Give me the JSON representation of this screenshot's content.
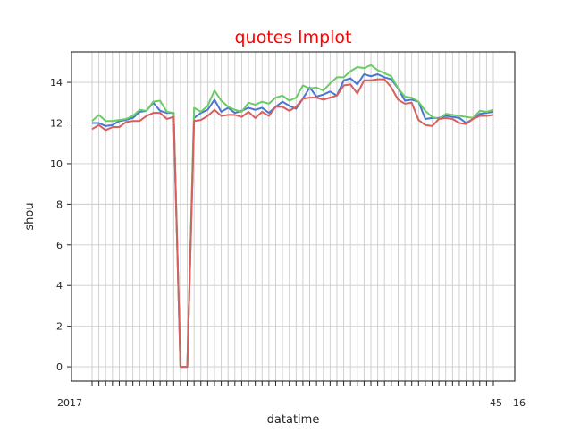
{
  "chart_data": {
    "type": "line",
    "title": "quotes lmplot",
    "xlabel": "datatime",
    "ylabel": "shou",
    "ylim": [
      -0.7,
      15.5
    ],
    "yticks": [
      0,
      2,
      4,
      6,
      8,
      10,
      12,
      14
    ],
    "xtick_first_fragment": "2017",
    "xtick_last_fragment": "45",
    "xtick_last_label": "16",
    "grid": true,
    "series": [
      {
        "color": "#4878d0",
        "values": [
          12.0,
          12.0,
          11.85,
          11.9,
          12.1,
          12.15,
          12.25,
          12.55,
          12.6,
          13.0,
          12.6,
          12.5,
          12.5,
          0.0,
          0.0,
          12.25,
          12.5,
          12.65,
          13.15,
          12.55,
          12.75,
          12.5,
          12.6,
          12.75,
          12.65,
          12.75,
          12.5,
          12.8,
          13.05,
          12.85,
          12.7,
          13.2,
          13.75,
          13.3,
          13.4,
          13.55,
          13.35,
          14.1,
          14.2,
          13.9,
          14.4,
          14.3,
          14.4,
          14.25,
          14.15,
          13.7,
          13.1,
          13.15,
          13.05,
          12.2,
          12.25,
          12.25,
          12.35,
          12.3,
          12.25,
          12.0,
          12.2,
          12.45,
          12.5,
          12.55
        ]
      },
      {
        "color": "#6acc64",
        "values": [
          12.1,
          12.4,
          12.1,
          12.1,
          12.15,
          12.2,
          12.35,
          12.65,
          12.6,
          13.05,
          13.1,
          12.55,
          12.5,
          0.0,
          0.0,
          12.75,
          12.55,
          12.85,
          13.6,
          13.1,
          12.8,
          12.65,
          12.55,
          13.0,
          12.9,
          13.05,
          12.95,
          13.25,
          13.35,
          13.1,
          13.25,
          13.85,
          13.7,
          13.75,
          13.6,
          13.95,
          14.25,
          14.25,
          14.55,
          14.75,
          14.7,
          14.85,
          14.6,
          14.45,
          14.3,
          13.7,
          13.3,
          13.25,
          13.05,
          12.6,
          12.3,
          12.2,
          12.45,
          12.4,
          12.35,
          12.3,
          12.25,
          12.6,
          12.55,
          12.65
        ]
      },
      {
        "color": "#d65f5f",
        "values": [
          11.7,
          11.9,
          11.65,
          11.8,
          11.8,
          12.05,
          12.1,
          12.1,
          12.35,
          12.5,
          12.5,
          12.2,
          12.3,
          0.0,
          0.0,
          12.1,
          12.15,
          12.35,
          12.65,
          12.35,
          12.4,
          12.4,
          12.3,
          12.55,
          12.25,
          12.55,
          12.35,
          12.8,
          12.8,
          12.6,
          12.8,
          13.2,
          13.25,
          13.25,
          13.15,
          13.25,
          13.35,
          13.85,
          13.9,
          13.45,
          14.1,
          14.1,
          14.15,
          14.15,
          13.75,
          13.15,
          12.95,
          13.0,
          12.15,
          11.9,
          11.85,
          12.2,
          12.25,
          12.2,
          12.0,
          11.95,
          12.2,
          12.35,
          12.35,
          12.4
        ]
      }
    ]
  }
}
